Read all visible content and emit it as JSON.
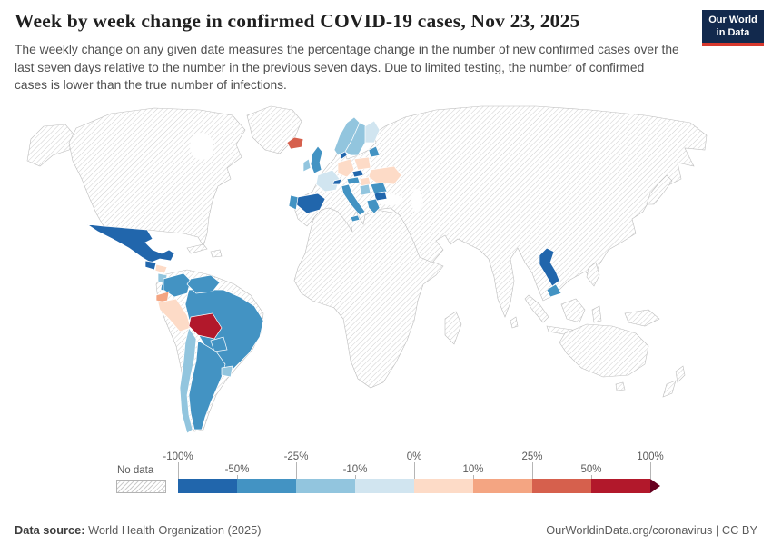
{
  "header": {
    "title": "Week by week change in confirmed COVID-19 cases, Nov 23, 2025",
    "subtitle": "The weekly change on any given date measures the percentage change in the number of new confirmed cases over the last seven days relative to the number in the previous seven days. Due to limited testing, the number of confirmed cases is lower than the true number of infections.",
    "logo": {
      "line1": "Our World",
      "line2": "in Data",
      "bg_color": "#12294d",
      "accent_color": "#d7382d"
    }
  },
  "legend": {
    "no_data_label": "No data",
    "ticks": [
      {
        "label": "-100%",
        "row": "top"
      },
      {
        "label": "-50%",
        "row": "bottom"
      },
      {
        "label": "-25%",
        "row": "top"
      },
      {
        "label": "-10%",
        "row": "bottom"
      },
      {
        "label": "0%",
        "row": "top"
      },
      {
        "label": "10%",
        "row": "bottom"
      },
      {
        "label": "25%",
        "row": "top"
      },
      {
        "label": "50%",
        "row": "bottom"
      },
      {
        "label": "100%",
        "row": "top"
      }
    ]
  },
  "footer": {
    "source_label": "Data source:",
    "source_text": " World Health Organization (2025)",
    "credit": "OurWorldinData.org/coronavirus | CC BY"
  },
  "chart_data": {
    "type": "choropleth_map",
    "title": "Week by week change in confirmed COVID-19 cases",
    "date": "Nov 23, 2025",
    "unit": "%",
    "scale": {
      "thresholds": [
        -100,
        -50,
        -25,
        -10,
        0,
        10,
        25,
        50,
        100
      ],
      "colors": [
        "#2166ac",
        "#4393c3",
        "#92c5de",
        "#d1e5f0",
        "#fddbc7",
        "#f4a582",
        "#d6604d",
        "#b2182b"
      ],
      "open_ended_arrow_color": "#67001f",
      "no_data_pattern": "diagonal-hatch"
    },
    "entities": [
      {
        "id": "mexico",
        "name": "Mexico",
        "value": -60
      },
      {
        "id": "guatemala",
        "name": "Guatemala",
        "value": -55
      },
      {
        "id": "honduras",
        "name": "Honduras",
        "value": 5
      },
      {
        "id": "nicaragua",
        "name": "Nicaragua",
        "value": -15
      },
      {
        "id": "costa-rica",
        "name": "Costa Rica",
        "value": -30
      },
      {
        "id": "panama",
        "name": "Panama",
        "value": -30
      },
      {
        "id": "colombia",
        "name": "Colombia",
        "value": -30
      },
      {
        "id": "venezuela",
        "name": "Venezuela",
        "value": -35
      },
      {
        "id": "ecuador",
        "name": "Ecuador",
        "value": 15
      },
      {
        "id": "peru",
        "name": "Peru",
        "value": 5
      },
      {
        "id": "bolivia",
        "name": "Bolivia",
        "value": 60
      },
      {
        "id": "brazil",
        "name": "Brazil",
        "value": -30
      },
      {
        "id": "paraguay",
        "name": "Paraguay",
        "value": -40
      },
      {
        "id": "uruguay",
        "name": "Uruguay",
        "value": -15
      },
      {
        "id": "chile",
        "name": "Chile",
        "value": -20
      },
      {
        "id": "argentina",
        "name": "Argentina",
        "value": -35
      },
      {
        "id": "iceland",
        "name": "Iceland",
        "value": 40
      },
      {
        "id": "united-kingdom",
        "name": "United Kingdom",
        "value": -30
      },
      {
        "id": "ireland",
        "name": "Ireland",
        "value": -15
      },
      {
        "id": "norway",
        "name": "Norway",
        "value": -15
      },
      {
        "id": "sweden",
        "name": "Sweden",
        "value": -20
      },
      {
        "id": "finland",
        "name": "Finland",
        "value": -8
      },
      {
        "id": "denmark",
        "name": "Denmark",
        "value": -55
      },
      {
        "id": "lithuania",
        "name": "Lithuania",
        "value": -30
      },
      {
        "id": "germany",
        "name": "Germany",
        "value": 5
      },
      {
        "id": "france",
        "name": "France",
        "value": -5
      },
      {
        "id": "spain",
        "name": "Spain",
        "value": -60
      },
      {
        "id": "portugal",
        "name": "Portugal",
        "value": -30
      },
      {
        "id": "switzerland",
        "name": "Switzerland",
        "value": -55
      },
      {
        "id": "italy",
        "name": "Italy",
        "value": -30
      },
      {
        "id": "czechia",
        "name": "Czechia",
        "value": -55
      },
      {
        "id": "austria",
        "name": "Austria",
        "value": -30
      },
      {
        "id": "poland",
        "name": "Poland",
        "value": 5
      },
      {
        "id": "hungary",
        "name": "Hungary",
        "value": 5
      },
      {
        "id": "ukraine",
        "name": "Ukraine",
        "value": 8
      },
      {
        "id": "romania",
        "name": "Romania",
        "value": -30
      },
      {
        "id": "serbia",
        "name": "Serbia",
        "value": -15
      },
      {
        "id": "bulgaria",
        "name": "Bulgaria",
        "value": -55
      },
      {
        "id": "greece",
        "name": "Greece",
        "value": -30
      },
      {
        "id": "thailand",
        "name": "Thailand",
        "value": -60
      },
      {
        "id": "malaysia",
        "name": "Malaysia",
        "value": -35
      }
    ]
  }
}
